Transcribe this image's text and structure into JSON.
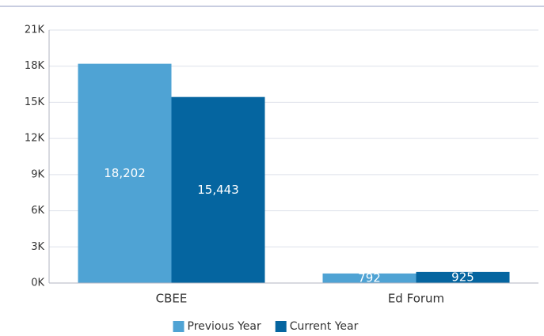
{
  "chart_data": {
    "type": "bar",
    "categories": [
      "CBEE",
      "Ed Forum"
    ],
    "series": [
      {
        "name": "Previous Year",
        "color": "#4fa3d4",
        "values": [
          18202,
          792
        ],
        "value_labels": [
          "18,202",
          "792"
        ]
      },
      {
        "name": "Current Year",
        "color": "#0565a0",
        "values": [
          15443,
          925
        ],
        "value_labels": [
          "15,443",
          "925"
        ]
      }
    ],
    "ylim": [
      0,
      21000
    ],
    "yticks": [
      {
        "value": 0,
        "label": "0K"
      },
      {
        "value": 3000,
        "label": "3K"
      },
      {
        "value": 6000,
        "label": "6K"
      },
      {
        "value": 9000,
        "label": "9K"
      },
      {
        "value": 12000,
        "label": "12K"
      },
      {
        "value": 15000,
        "label": "15K"
      },
      {
        "value": 18000,
        "label": "18K"
      },
      {
        "value": 21000,
        "label": "21K"
      }
    ],
    "grid": true,
    "legend": "bottom"
  }
}
